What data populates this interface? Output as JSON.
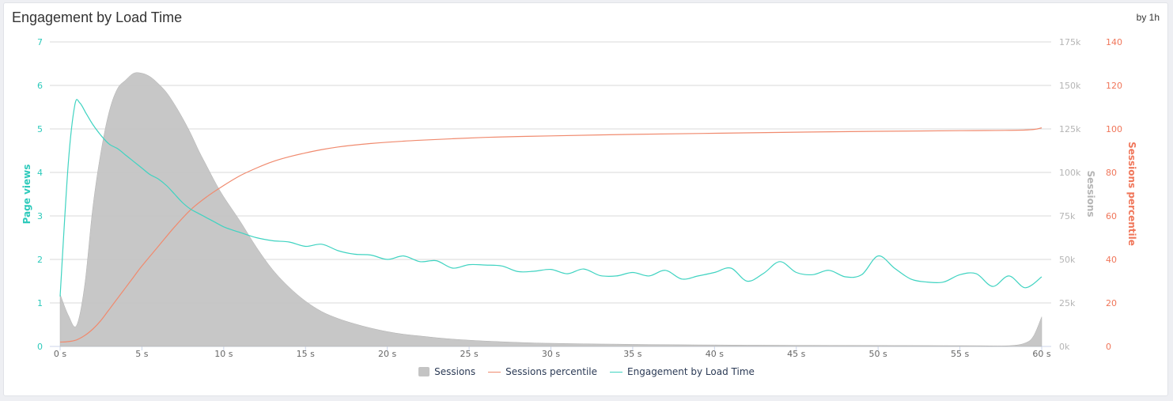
{
  "header": {
    "title": "Engagement by Load Time",
    "interval": "by 1h"
  },
  "colors": {
    "sessions": "#c4c4c4",
    "percentile": "#f08a6e",
    "engagement": "#3fd3c1",
    "left_axis": "#2dcabb",
    "right_axis": "#f0765a",
    "mid_axis": "#b5b5b5"
  },
  "chart_data": {
    "type": "area",
    "x_label_suffix": " s",
    "x_ticks": [
      0,
      5,
      10,
      15,
      20,
      25,
      30,
      35,
      40,
      45,
      50,
      55,
      60
    ],
    "x_tick_labels": [
      "0 s",
      "5 s",
      "10 s",
      "15 s",
      "20 s",
      "25 s",
      "30 s",
      "35 s",
      "40 s",
      "45 s",
      "50 s",
      "55 s",
      "60 s"
    ],
    "xlim": [
      0,
      60
    ],
    "axes": {
      "page_views": {
        "label": "Page views",
        "ylim": [
          0,
          7
        ],
        "ticks": [
          "0",
          "1",
          "2",
          "3",
          "4",
          "5",
          "6",
          "7"
        ],
        "position": "left"
      },
      "sessions": {
        "label": "Sessions",
        "ylim": [
          0,
          175000
        ],
        "ticks": [
          "0k",
          "25k",
          "50k",
          "75k",
          "100k",
          "125k",
          "150k",
          "175k"
        ],
        "position": "right"
      },
      "sessions_percentile": {
        "label": "Sessions percentile",
        "ylim": [
          0,
          140
        ],
        "ticks": [
          "0",
          "20",
          "40",
          "60",
          "80",
          "100",
          "120",
          "140"
        ],
        "position": "right-outer"
      }
    },
    "series": [
      {
        "name": "Sessions",
        "kind": "area",
        "axis": "sessions",
        "x": [
          0,
          0.5,
          1,
          1.5,
          2,
          2.5,
          3,
          3.5,
          4,
          4.5,
          5,
          5.5,
          6,
          6.5,
          7,
          7.5,
          8,
          8.5,
          9,
          9.5,
          10,
          11,
          12,
          13,
          14,
          15,
          16,
          17,
          18,
          19,
          20,
          21,
          22,
          23,
          24,
          25,
          26,
          27,
          28,
          29,
          30,
          32,
          34,
          36,
          38,
          40,
          42,
          44,
          46,
          48,
          50,
          52,
          54,
          56,
          58,
          59,
          59.5,
          60
        ],
        "values": [
          30000,
          18000,
          12000,
          35000,
          80000,
          112000,
          135000,
          148000,
          153000,
          157000,
          157000,
          155000,
          151000,
          146000,
          139000,
          131000,
          122000,
          112000,
          103000,
          94000,
          86000,
          72000,
          57000,
          44000,
          34000,
          26000,
          20000,
          16000,
          13000,
          10500,
          8500,
          7000,
          6000,
          5000,
          4200,
          3600,
          3100,
          2700,
          2300,
          2000,
          1800,
          1500,
          1300,
          1100,
          950,
          850,
          750,
          680,
          620,
          570,
          530,
          490,
          460,
          430,
          400,
          2000,
          6000,
          17000
        ]
      },
      {
        "name": "Sessions percentile",
        "kind": "line",
        "axis": "sessions_percentile",
        "x": [
          0,
          0.5,
          1,
          1.5,
          2,
          2.5,
          3,
          3.5,
          4,
          4.5,
          5,
          6,
          7,
          8,
          9,
          10,
          11,
          12,
          13,
          14,
          15,
          16,
          17,
          18,
          19,
          20,
          22,
          24,
          26,
          28,
          30,
          35,
          40,
          45,
          50,
          55,
          59,
          60
        ],
        "values": [
          2,
          2.2,
          3,
          5,
          8,
          12,
          17,
          22,
          27,
          32,
          37,
          46,
          55,
          63,
          69,
          74,
          78.5,
          82,
          85,
          87.2,
          89,
          90.5,
          91.7,
          92.6,
          93.3,
          93.9,
          94.8,
          95.5,
          96.1,
          96.5,
          96.8,
          97.5,
          98,
          98.5,
          98.9,
          99.2,
          99.5,
          100.5
        ]
      },
      {
        "name": "Engagement by Load Time",
        "kind": "line",
        "axis": "page_views",
        "x": [
          0,
          0.5,
          0.9,
          1.2,
          1.6,
          2,
          2.5,
          3,
          3.5,
          4,
          4.5,
          5,
          5.5,
          6,
          6.5,
          7,
          7.5,
          8,
          8.5,
          9,
          9.5,
          10,
          10.5,
          11,
          12,
          13,
          14,
          15,
          16,
          17,
          18,
          19,
          20,
          21,
          22,
          23,
          24,
          25,
          26,
          27,
          28,
          29,
          30,
          31,
          32,
          33,
          34,
          35,
          36,
          37,
          38,
          39,
          40,
          41,
          42,
          43,
          44,
          45,
          46,
          47,
          48,
          49,
          50,
          51,
          52,
          53,
          54,
          55,
          56,
          57,
          58,
          59,
          60
        ],
        "values": [
          1.15,
          4.2,
          5.55,
          5.6,
          5.35,
          5.1,
          4.85,
          4.65,
          4.55,
          4.4,
          4.25,
          4.1,
          3.95,
          3.85,
          3.7,
          3.5,
          3.3,
          3.15,
          3.05,
          2.95,
          2.85,
          2.75,
          2.68,
          2.62,
          2.5,
          2.43,
          2.4,
          2.3,
          2.35,
          2.2,
          2.12,
          2.1,
          2.0,
          2.08,
          1.95,
          1.97,
          1.8,
          1.88,
          1.87,
          1.85,
          1.72,
          1.73,
          1.77,
          1.67,
          1.78,
          1.63,
          1.62,
          1.7,
          1.62,
          1.75,
          1.55,
          1.62,
          1.7,
          1.8,
          1.5,
          1.68,
          1.95,
          1.7,
          1.65,
          1.75,
          1.6,
          1.65,
          2.08,
          1.8,
          1.55,
          1.48,
          1.48,
          1.65,
          1.67,
          1.38,
          1.62,
          1.35,
          1.6
        ]
      }
    ],
    "legend": {
      "position": "bottom",
      "items": [
        "Sessions",
        "Sessions percentile",
        "Engagement by Load Time"
      ]
    },
    "grid": true
  }
}
